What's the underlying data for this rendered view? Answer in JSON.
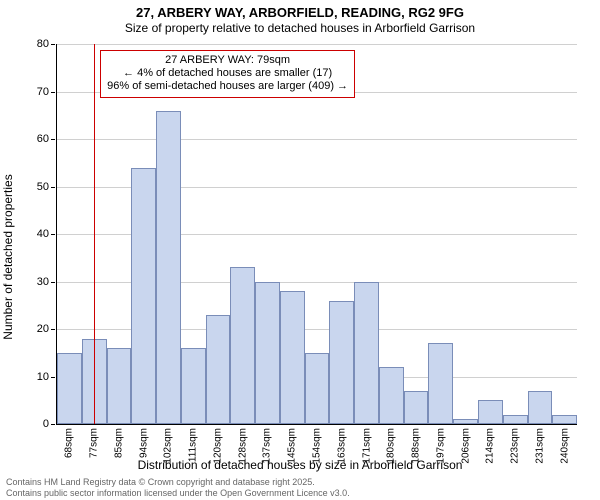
{
  "title": "27, ARBERY WAY, ARBORFIELD, READING, RG2 9FG",
  "subtitle": "Size of property relative to detached houses in Arborfield Garrison",
  "chart": {
    "type": "histogram",
    "y_axis_title": "Number of detached properties",
    "x_axis_title": "Distribution of detached houses by size in Arborfield Garrison",
    "ylim": [
      0,
      80
    ],
    "ytick_step": 10,
    "bar_fill": "#c9d6ee",
    "bar_stroke": "#7a8db8",
    "grid_color": "#d0d0d0",
    "background_color": "#ffffff",
    "marker_color": "#cc0000",
    "marker_bin_index": 1,
    "categories": [
      "68sqm",
      "77sqm",
      "85sqm",
      "94sqm",
      "102sqm",
      "111sqm",
      "120sqm",
      "128sqm",
      "137sqm",
      "145sqm",
      "154sqm",
      "163sqm",
      "171sqm",
      "180sqm",
      "188sqm",
      "197sqm",
      "206sqm",
      "214sqm",
      "223sqm",
      "231sqm",
      "240sqm"
    ],
    "values": [
      15,
      18,
      16,
      54,
      66,
      16,
      23,
      33,
      30,
      28,
      15,
      26,
      30,
      12,
      7,
      17,
      1,
      5,
      2,
      7,
      2
    ],
    "annotation": {
      "line1": "27 ARBERY WAY: 79sqm",
      "line2": "← 4% of detached houses are smaller (17)",
      "line3": "96% of semi-detached houses are larger (409) →"
    },
    "title_fontsize": 13,
    "label_fontsize": 12,
    "tick_fontsize": 10
  },
  "footer": {
    "line1": "Contains HM Land Registry data © Crown copyright and database right 2025.",
    "line2": "Contains public sector information licensed under the Open Government Licence v3.0."
  }
}
